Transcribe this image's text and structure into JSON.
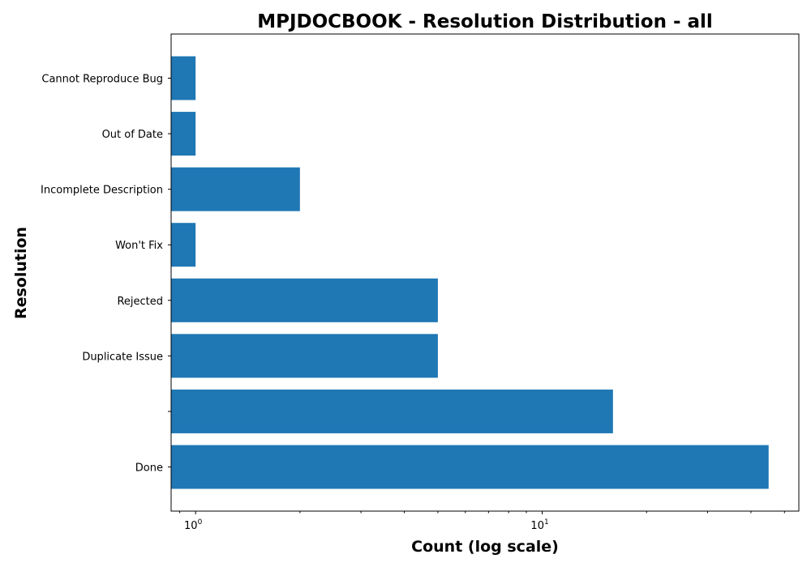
{
  "chart_data": {
    "type": "bar",
    "orientation": "horizontal",
    "title": "MPJDOCBOOK - Resolution Distribution - all",
    "xlabel": "Count (log scale)",
    "ylabel": "Resolution",
    "x_scale": "log",
    "xlim": [
      0.85,
      55
    ],
    "x_ticks": [
      {
        "value": 1,
        "base": "10",
        "exp": "0"
      },
      {
        "value": 10,
        "base": "10",
        "exp": "1"
      }
    ],
    "categories": [
      "Done",
      "",
      "Duplicate Issue",
      "Rejected",
      "Won't Fix",
      "Incomplete Description",
      "Out of Date",
      "Cannot Reproduce Bug"
    ],
    "values": [
      45,
      16,
      5,
      5,
      1,
      2,
      1,
      1
    ],
    "bar_color": "#1f77b4",
    "grid": false,
    "legend": "none"
  }
}
